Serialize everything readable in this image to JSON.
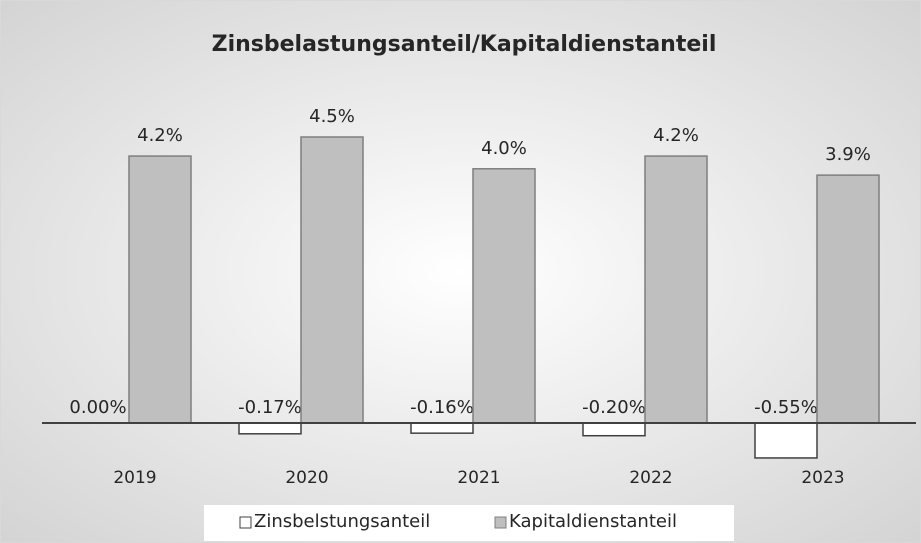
{
  "chart_data": {
    "type": "bar",
    "title": "Zinsbelastungsanteil/Kapitaldienstanteil",
    "categories": [
      "2019",
      "2020",
      "2021",
      "2022",
      "2023"
    ],
    "series": [
      {
        "name": "Zinsbelstungsanteil",
        "color": "#ffffff",
        "values": [
          0,
          -0.17,
          -0.16,
          -0.2,
          -0.55
        ],
        "value_labels": [
          "0.00%",
          "-0.17%",
          "-0.16%",
          "-0.20%",
          "-0.55%"
        ]
      },
      {
        "name": "Kapitaldienstanteil",
        "color": "#bfbfbf",
        "values": [
          4.2,
          4.5,
          4.0,
          4.2,
          3.9
        ],
        "value_labels": [
          "4.2%",
          "4.5%",
          "4.0%",
          "4.2%",
          "3.9%"
        ]
      }
    ],
    "legend": "bottom"
  }
}
